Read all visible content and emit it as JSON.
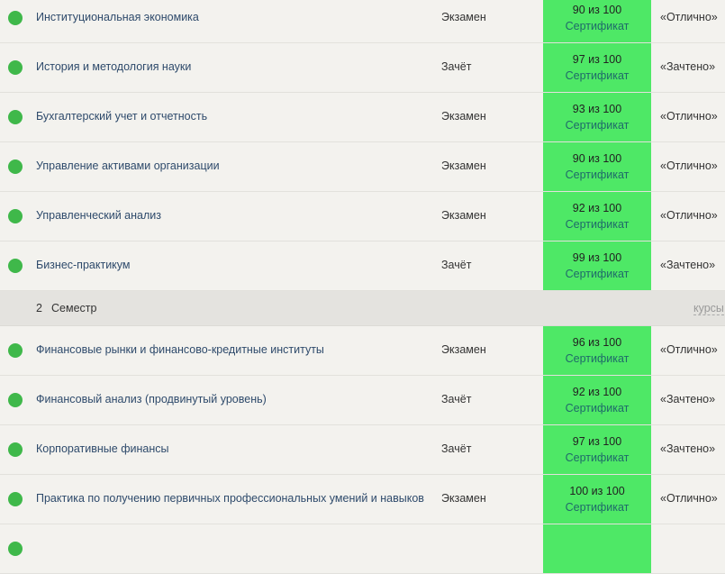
{
  "colors": {
    "status_dot": "#3fb84a",
    "score_bg": "#4ee866",
    "cert_text": "#1f6a6a"
  },
  "groups": [
    {
      "rows": [
        {
          "title": "Институциональная экономика",
          "type": "Экзамен",
          "score": "90 из 100",
          "cert": "Сертификат",
          "grade": "«Отлично»"
        },
        {
          "title": "История и методология науки",
          "type": "Зачёт",
          "score": "97 из 100",
          "cert": "Сертификат",
          "grade": "«Зачтено»"
        },
        {
          "title": "Бухгалтерский учет и отчетность",
          "type": "Экзамен",
          "score": "93 из 100",
          "cert": "Сертификат",
          "grade": "«Отлично»"
        },
        {
          "title": "Управление активами организации",
          "type": "Экзамен",
          "score": "90 из 100",
          "cert": "Сертификат",
          "grade": "«Отлично»"
        },
        {
          "title": "Управленческий анализ",
          "type": "Экзамен",
          "score": "92 из 100",
          "cert": "Сертификат",
          "grade": "«Отлично»"
        },
        {
          "title": "Бизнес-практикум",
          "type": "Зачёт",
          "score": "99 из 100",
          "cert": "Сертификат",
          "grade": "«Зачтено»"
        }
      ]
    },
    {
      "semester": {
        "number": "2",
        "label": "Семестр",
        "link": "курсы"
      },
      "rows": [
        {
          "title": "Финансовые рынки и финансово-кредитные институты",
          "type": "Экзамен",
          "score": "96 из 100",
          "cert": "Сертификат",
          "grade": "«Отлично»"
        },
        {
          "title": "Финансовый анализ (продвинутый уровень)",
          "type": "Зачёт",
          "score": "92 из 100",
          "cert": "Сертификат",
          "grade": "«Зачтено»"
        },
        {
          "title": "Корпоративные финансы",
          "type": "Зачёт",
          "score": "97 из 100",
          "cert": "Сертификат",
          "grade": "«Зачтено»"
        },
        {
          "title": "Практика по получению первичных профессиональных умений и навыков",
          "type": "Экзамен",
          "score": "100 из 100",
          "cert": "Сертификат",
          "grade": "«Отлично»"
        },
        {
          "title": "",
          "type": "",
          "score": "",
          "cert": "",
          "grade": ""
        }
      ]
    }
  ]
}
